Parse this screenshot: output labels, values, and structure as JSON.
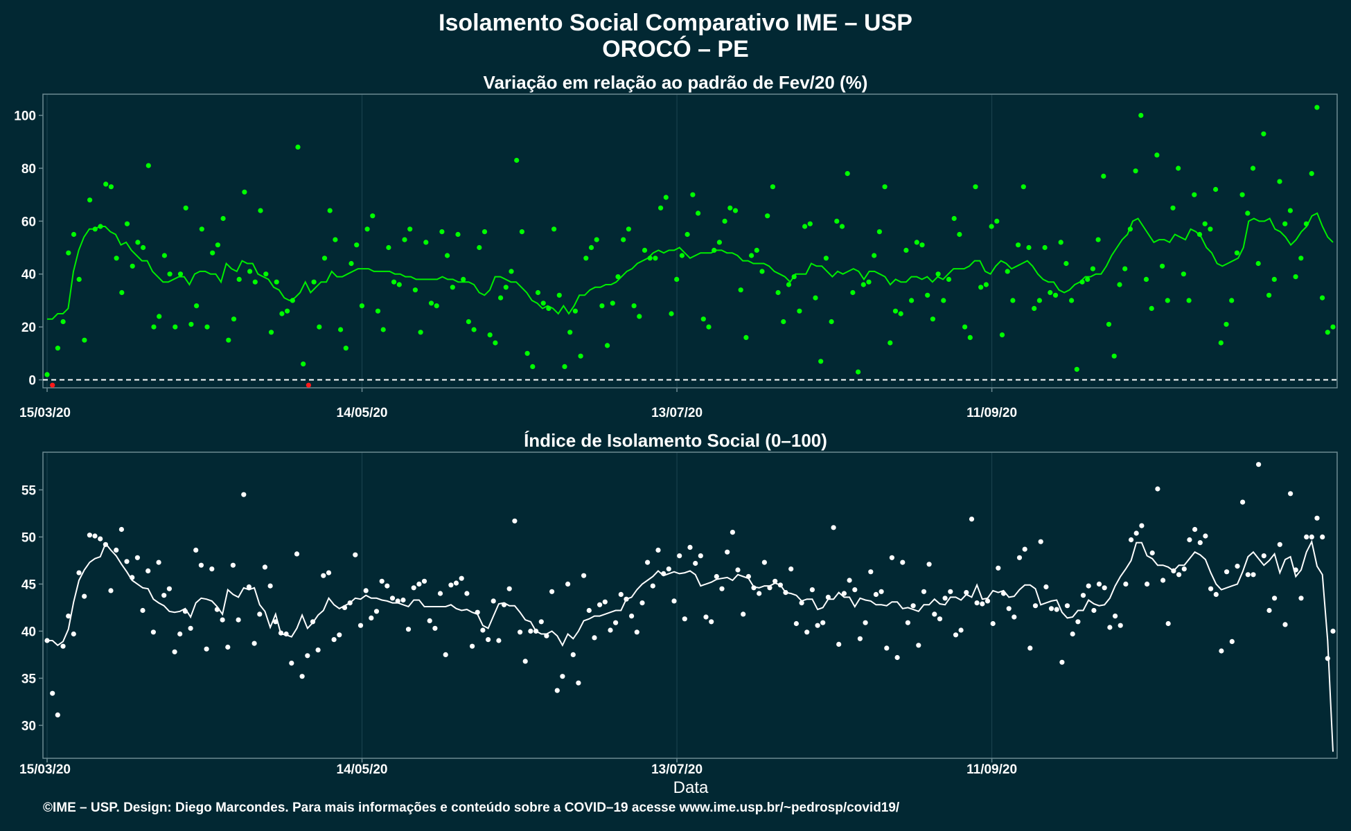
{
  "header": {
    "title": "Isolamento Social Comparativo IME – USP",
    "subtitle": "OROCÓ – PE"
  },
  "footer": {
    "credit": "©IME – USP. Design: Diego Marcondes. Para mais informações e conteúdo sobre a COVID–19 acesse www.ime.usp.br/~pedrosp/covid19/"
  },
  "colors": {
    "background": "#022833",
    "panel_border": "#6d8a92",
    "grid": "#1d4550",
    "variation_points": "#00ff00",
    "variation_negative_points": "#ff1a1a",
    "variation_line": "#00ee00",
    "index_points": "#ffffff",
    "index_line": "#ffffff"
  },
  "chart_data": [
    {
      "type": "scatter",
      "title": "Variação em relação ao padrão de Fev/20 (%)",
      "xlabel": "",
      "ylabel": "",
      "x_ticks": [
        "15/03/20",
        "14/05/20",
        "13/07/20",
        "11/09/20"
      ],
      "x_tick_days": [
        0,
        60,
        120,
        180
      ],
      "x_range_days": [
        0,
        245
      ],
      "ylim": [
        -3,
        108
      ],
      "y_ticks": [
        0,
        20,
        40,
        60,
        80,
        100
      ],
      "reference_line": 0,
      "series": [
        {
          "kind": "points",
          "values": [
            2,
            -2,
            12,
            22,
            48,
            55,
            38,
            15,
            68,
            57,
            58,
            74,
            73,
            46,
            33,
            59,
            43,
            52,
            50,
            81,
            20,
            24,
            47,
            40,
            20,
            40,
            65,
            21,
            28,
            57,
            20,
            48,
            51,
            61,
            15,
            23,
            38,
            71,
            41,
            37,
            64,
            40,
            18,
            37,
            25,
            26,
            30,
            88,
            6,
            -2,
            37,
            20,
            46,
            64,
            53,
            19,
            12,
            44,
            51,
            28,
            57,
            62,
            26,
            19,
            50,
            37,
            36,
            53,
            57,
            34,
            18,
            52,
            29,
            28,
            56,
            47,
            35,
            55,
            38,
            22,
            19,
            50,
            56,
            17,
            14,
            31,
            35,
            41,
            83,
            56,
            10,
            5,
            33,
            29,
            27,
            57,
            32,
            5,
            18,
            26,
            9,
            46,
            50,
            53,
            28,
            13,
            29,
            39,
            53,
            57,
            28,
            24,
            49,
            46,
            46,
            65,
            69,
            25,
            38,
            47,
            55,
            70,
            63,
            23,
            20,
            49,
            52,
            60,
            65,
            64,
            34,
            16,
            47,
            49,
            41,
            62,
            73,
            33,
            22,
            36,
            39,
            26,
            58,
            59,
            31,
            7,
            46,
            22,
            60,
            58,
            78,
            33,
            3,
            36,
            37,
            47,
            56,
            73,
            14,
            26,
            25,
            49,
            30,
            52,
            51,
            32,
            23,
            40,
            30,
            38,
            61,
            55,
            20,
            16,
            73,
            35,
            36,
            58,
            60,
            17,
            41,
            30,
            51,
            73,
            50,
            27,
            30,
            50,
            33,
            32,
            52,
            44,
            30,
            4,
            37,
            38,
            42,
            53,
            77,
            21,
            9,
            36,
            42,
            57,
            79,
            100,
            38,
            27,
            85,
            43,
            30,
            65,
            80,
            40,
            30,
            70,
            55,
            59,
            57,
            72,
            14,
            21,
            30,
            48,
            70,
            63,
            80,
            44,
            93,
            32,
            38,
            75,
            59,
            64,
            39,
            46,
            59,
            78,
            103,
            31,
            18,
            20
          ]
        },
        {
          "kind": "line",
          "values": [
            23,
            23,
            25,
            25,
            27,
            41,
            49,
            54,
            57,
            57,
            58,
            58,
            56,
            55,
            51,
            52,
            49,
            47,
            45,
            45,
            41,
            39,
            37,
            37,
            38,
            39,
            39,
            36,
            40,
            41,
            41,
            40,
            40,
            37,
            44,
            42,
            41,
            45,
            44,
            44,
            40,
            39,
            38,
            35,
            34,
            31,
            30,
            31,
            33,
            37,
            33,
            35,
            37,
            37,
            41,
            39,
            39,
            40,
            41,
            42,
            42,
            42,
            41,
            41,
            41,
            41,
            40,
            40,
            39,
            39,
            38,
            38,
            38,
            38,
            38,
            39,
            38,
            38,
            37,
            37,
            37,
            36,
            33,
            32,
            34,
            39,
            39,
            38,
            37,
            37,
            35,
            33,
            30,
            29,
            27,
            28,
            27,
            25,
            28,
            25,
            28,
            32,
            32,
            34,
            35,
            35,
            36,
            36,
            37,
            39,
            41,
            42,
            44,
            45,
            46,
            48,
            49,
            48,
            49,
            49,
            50,
            48,
            46,
            47,
            48,
            48,
            48,
            49,
            49,
            48,
            48,
            47,
            45,
            45,
            44,
            44,
            44,
            43,
            41,
            40,
            39,
            37,
            40,
            40,
            40,
            44,
            43,
            43,
            41,
            39,
            41,
            40,
            41,
            42,
            41,
            38,
            41,
            41,
            40,
            39,
            36,
            38,
            37,
            37,
            39,
            39,
            38,
            39,
            37,
            39,
            38,
            40,
            42,
            42,
            42,
            43,
            45,
            45,
            41,
            40,
            43,
            45,
            44,
            42,
            43,
            44,
            45,
            43,
            40,
            38,
            37,
            37,
            34,
            33,
            34,
            36,
            37,
            39,
            39,
            40,
            40,
            43,
            47,
            50,
            53,
            55,
            60,
            61,
            58,
            55,
            52,
            53,
            53,
            52,
            55,
            54,
            53,
            57,
            56,
            54,
            50,
            48,
            44,
            43,
            44,
            45,
            46,
            50,
            60,
            61,
            60,
            60,
            61,
            57,
            56,
            54,
            51,
            53,
            56,
            58,
            62,
            63,
            58,
            54,
            52
          ]
        }
      ]
    },
    {
      "type": "scatter",
      "title": "Índice de Isolamento Social (0–100)",
      "xlabel": "Data",
      "ylabel": "",
      "x_ticks": [
        "15/03/20",
        "14/05/20",
        "13/07/20",
        "11/09/20"
      ],
      "x_tick_days": [
        0,
        60,
        120,
        180
      ],
      "x_range_days": [
        0,
        245
      ],
      "ylim": [
        26.5,
        59
      ],
      "y_ticks": [
        30,
        35,
        40,
        45,
        50,
        55
      ],
      "series": [
        {
          "kind": "points",
          "values": [
            39.0,
            33.4,
            31.1,
            38.4,
            41.6,
            39.7,
            46.2,
            43.7,
            50.2,
            50.1,
            49.8,
            49.2,
            44.3,
            48.6,
            50.8,
            47.4,
            45.7,
            47.8,
            42.2,
            46.4,
            39.9,
            47.3,
            43.8,
            44.5,
            37.8,
            39.7,
            42.1,
            40.3,
            48.6,
            47.0,
            38.1,
            46.6,
            42.3,
            41.2,
            38.3,
            47.0,
            41.2,
            54.5,
            44.7,
            38.7,
            41.8,
            46.8,
            44.8,
            41.0,
            39.8,
            39.7,
            36.6,
            48.2,
            35.2,
            37.4,
            41.0,
            38.0,
            45.9,
            46.2,
            39.1,
            39.6,
            42.5,
            43.0,
            48.1,
            40.6,
            44.3,
            41.4,
            42.1,
            45.3,
            44.8,
            43.5,
            43.2,
            43.3,
            40.2,
            44.6,
            45.0,
            45.3,
            41.1,
            40.3,
            44.0,
            37.5,
            44.9,
            45.1,
            45.6,
            44.0,
            38.4,
            42.0,
            40.1,
            39.1,
            43.2,
            39.0,
            42.8,
            44.5,
            51.7,
            39.9,
            36.8,
            40.0,
            40.0,
            41.0,
            39.5,
            44.2,
            33.7,
            35.2,
            45.0,
            37.5,
            34.5,
            45.9,
            42.2,
            39.3,
            42.8,
            43.1,
            40.1,
            40.9,
            43.9,
            43.4,
            41.6,
            39.9,
            43.0,
            47.3,
            44.8,
            48.6,
            46.1,
            46.6,
            43.2,
            48.0,
            41.3,
            48.9,
            47.2,
            48.0,
            41.5,
            41.0,
            45.8,
            44.5,
            48.4,
            50.5,
            46.5,
            41.8,
            45.8,
            44.6,
            44.0,
            47.3,
            44.6,
            45.3,
            44.9,
            44.1,
            46.6,
            40.8,
            43.0,
            39.9,
            44.4,
            40.6,
            40.9,
            43.6,
            51.0,
            38.6,
            44.0,
            45.4,
            44.4,
            39.2,
            40.9,
            46.3,
            43.9,
            44.2,
            38.2,
            47.8,
            37.2,
            47.3,
            40.9,
            42.7,
            38.5,
            44.2,
            47.1,
            41.8,
            41.3,
            43.5,
            44.2,
            39.6,
            40.1,
            44.1,
            51.9,
            43.0,
            42.9,
            43.2,
            40.8,
            46.7,
            44.0,
            42.4,
            41.5,
            47.8,
            48.7,
            38.2,
            42.7,
            49.5,
            44.7,
            42.4,
            42.3,
            36.7,
            42.7,
            39.7,
            41.0,
            43.8,
            44.8,
            42.2,
            45.0,
            44.6,
            40.4,
            41.6,
            40.6,
            45.0,
            49.7,
            50.4,
            51.2,
            45.0,
            48.3,
            55.1,
            45.4,
            40.8,
            46.4,
            46.0,
            46.6,
            49.7,
            50.8,
            49.4,
            50.1,
            44.5,
            43.9,
            37.9,
            46.3,
            38.9,
            46.9,
            53.7,
            46.0,
            46.0,
            57.7,
            48.0,
            42.2,
            43.5,
            49.2,
            40.7,
            54.6,
            46.5,
            43.5,
            50.0,
            50.0,
            52.0,
            50.0,
            37.1,
            40.0
          ]
        },
        {
          "kind": "line",
          "values": [
            39.0,
            39.0,
            38.5,
            38.9,
            40.2,
            43.1,
            45.4,
            46.5,
            47.3,
            47.7,
            47.9,
            49.3,
            48.6,
            48.0,
            47.1,
            46.3,
            45.4,
            45.0,
            44.6,
            44.5,
            43.4,
            43.0,
            42.7,
            42.1,
            42.0,
            42.1,
            42.4,
            41.5,
            43.0,
            43.5,
            43.4,
            43.2,
            42.6,
            41.8,
            44.4,
            43.9,
            43.6,
            44.6,
            44.4,
            44.6,
            42.8,
            42.1,
            40.4,
            41.8,
            39.7,
            39.6,
            39.4,
            40.3,
            41.7,
            40.3,
            40.9,
            41.7,
            42.2,
            43.5,
            42.8,
            42.4,
            42.7,
            43.0,
            43.5,
            43.4,
            43.8,
            43.5,
            43.5,
            43.3,
            43.2,
            43.0,
            43.0,
            42.8,
            42.6,
            43.3,
            43.3,
            42.6,
            42.6,
            42.6,
            42.6,
            42.6,
            42.8,
            42.4,
            42.2,
            42.3,
            42.0,
            41.8,
            40.6,
            40.3,
            41.6,
            42.9,
            43.0,
            42.7,
            42.7,
            42.0,
            41.2,
            41.0,
            40.0,
            39.7,
            39.7,
            40.0,
            39.5,
            38.5,
            39.7,
            39.2,
            40.0,
            41.1,
            41.3,
            41.6,
            41.6,
            41.8,
            42.0,
            42.2,
            42.2,
            43.4,
            43.6,
            44.4,
            45.0,
            45.4,
            45.8,
            46.4,
            45.9,
            46.1,
            46.3,
            46.1,
            46.2,
            46.4,
            46.0,
            44.8,
            45.0,
            45.2,
            45.5,
            45.6,
            45.7,
            45.4,
            46.0,
            45.8,
            45.6,
            44.7,
            44.6,
            44.8,
            44.8,
            45.1,
            44.9,
            44.1,
            44.0,
            43.8,
            43.2,
            43.4,
            43.4,
            42.3,
            42.5,
            43.4,
            43.4,
            44.1,
            43.6,
            43.6,
            42.6,
            43.5,
            43.3,
            43.2,
            42.8,
            42.8,
            42.7,
            43.1,
            43.1,
            42.4,
            42.5,
            42.3,
            42.1,
            42.8,
            42.8,
            43.4,
            42.9,
            42.8,
            43.6,
            43.6,
            43.3,
            43.9,
            43.6,
            44.9,
            43.4,
            43.5,
            44.3,
            44.1,
            44.3,
            43.6,
            43.7,
            44.4,
            44.9,
            44.9,
            44.5,
            42.8,
            43.0,
            43.2,
            43.3,
            42.0,
            41.4,
            41.5,
            42.2,
            42.2,
            43.3,
            42.9,
            42.7,
            42.8,
            43.5,
            44.8,
            45.8,
            46.6,
            47.5,
            49.4,
            49.4,
            48.0,
            47.7,
            47.0,
            47.0,
            46.8,
            46.4,
            47.0,
            47.0,
            47.7,
            48.4,
            48.1,
            47.6,
            46.2,
            45.0,
            44.4,
            44.6,
            44.8,
            45.0,
            46.3,
            47.9,
            48.4,
            47.7,
            47.0,
            47.5,
            48.2,
            46.2,
            47.6,
            47.9,
            45.8,
            46.5,
            48.4,
            49.5,
            46.9,
            46.0,
            39.0,
            27.2
          ]
        }
      ]
    }
  ]
}
